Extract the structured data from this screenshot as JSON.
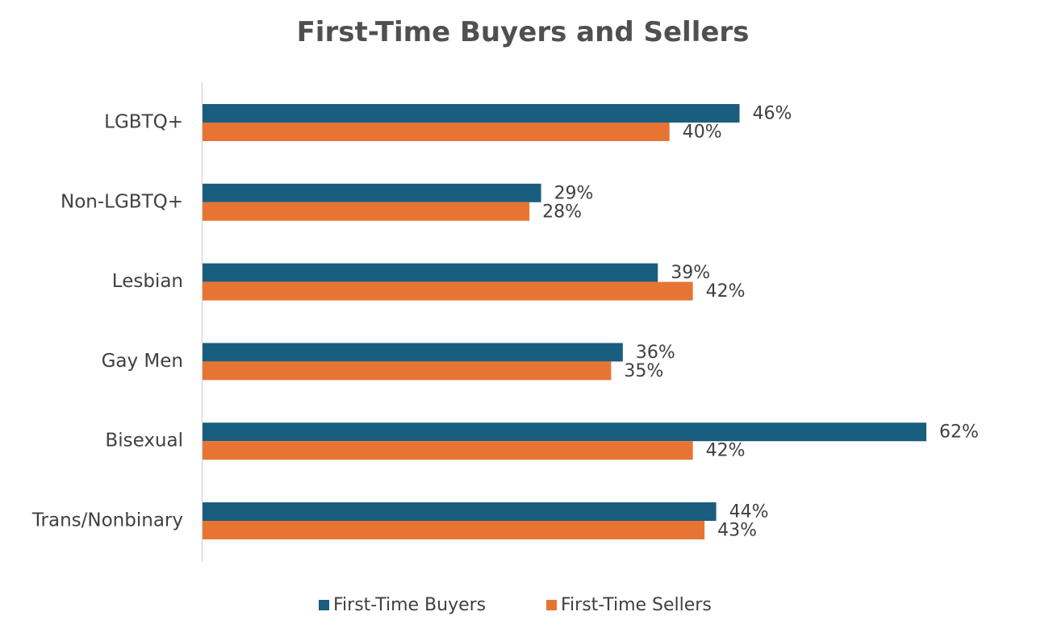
{
  "chart_data": {
    "type": "bar",
    "orientation": "horizontal",
    "title": "First-Time Buyers and Sellers",
    "categories": [
      "LGBTQ+",
      "Non-LGBTQ+",
      "Lesbian",
      "Gay Men",
      "Bisexual",
      "Trans/Nonbinary"
    ],
    "series": [
      {
        "name": "First-Time Buyers",
        "color": "#1a5e7f",
        "values": [
          46,
          29,
          39,
          36,
          62,
          44
        ],
        "labels": [
          "46%",
          "29%",
          "39%",
          "36%",
          "62%",
          "44%"
        ]
      },
      {
        "name": "First-Time Sellers",
        "color": "#e87434",
        "values": [
          40,
          28,
          42,
          35,
          42,
          43
        ],
        "labels": [
          "40%",
          "28%",
          "42%",
          "35%",
          "42%",
          "43%"
        ]
      }
    ],
    "xlim": [
      0,
      62
    ],
    "unit": "%",
    "grid": false,
    "legend_position": "bottom"
  }
}
